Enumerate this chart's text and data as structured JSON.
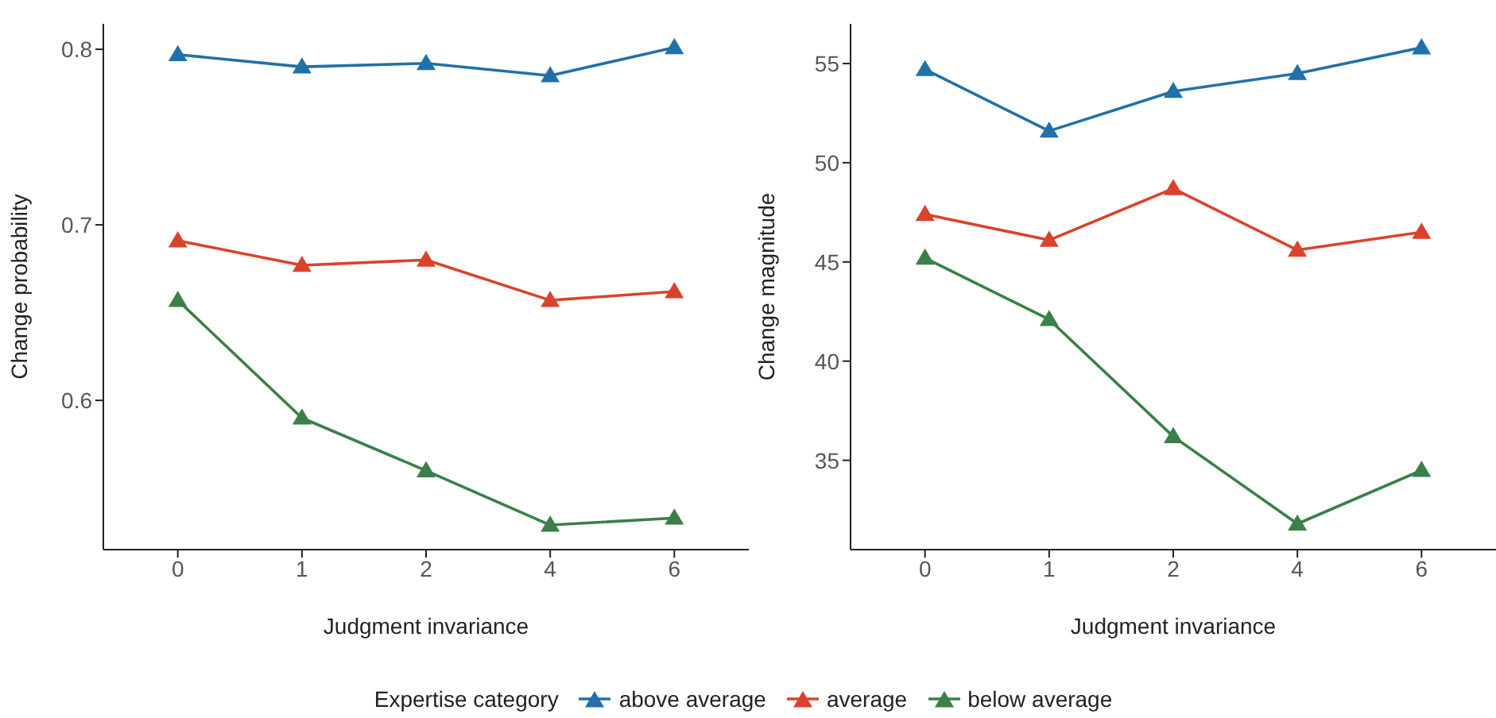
{
  "chart_data": [
    {
      "type": "line",
      "xlabel": "Judgment invariance",
      "ylabel": "Change probability",
      "categories": [
        "0",
        "1",
        "2",
        "4",
        "6"
      ],
      "ylim": [
        0.515,
        0.8145
      ],
      "yticks": [
        0.6,
        0.7,
        0.8
      ],
      "grid": false,
      "marker": "triangle",
      "line_style": "solid",
      "legend": "bottom",
      "legend_title": "Expertise category",
      "series": [
        {
          "name": "above average",
          "color": "#2171a8",
          "values": [
            0.797,
            0.79,
            0.792,
            0.785,
            0.801
          ]
        },
        {
          "name": "average",
          "color": "#d9432b",
          "values": [
            0.691,
            0.677,
            0.68,
            0.657,
            0.662
          ]
        },
        {
          "name": "below average",
          "color": "#3a8048",
          "values": [
            0.657,
            0.59,
            0.56,
            0.529,
            0.533
          ]
        }
      ]
    },
    {
      "type": "line",
      "xlabel": "Judgment invariance",
      "ylabel": "Change magnitude",
      "categories": [
        "0",
        "1",
        "2",
        "4",
        "6"
      ],
      "ylim": [
        30.5,
        57
      ],
      "yticks": [
        35,
        40,
        45,
        50,
        55
      ],
      "grid": false,
      "marker": "triangle",
      "line_style": "solid",
      "series": [
        {
          "name": "above average",
          "color": "#2171a8",
          "values": [
            54.7,
            51.6,
            53.6,
            54.5,
            55.8
          ]
        },
        {
          "name": "average",
          "color": "#d9432b",
          "values": [
            47.4,
            46.1,
            48.7,
            45.6,
            46.5
          ]
        },
        {
          "name": "below average",
          "color": "#3a8048",
          "values": [
            45.2,
            42.1,
            36.2,
            31.8,
            34.5
          ]
        }
      ]
    }
  ]
}
